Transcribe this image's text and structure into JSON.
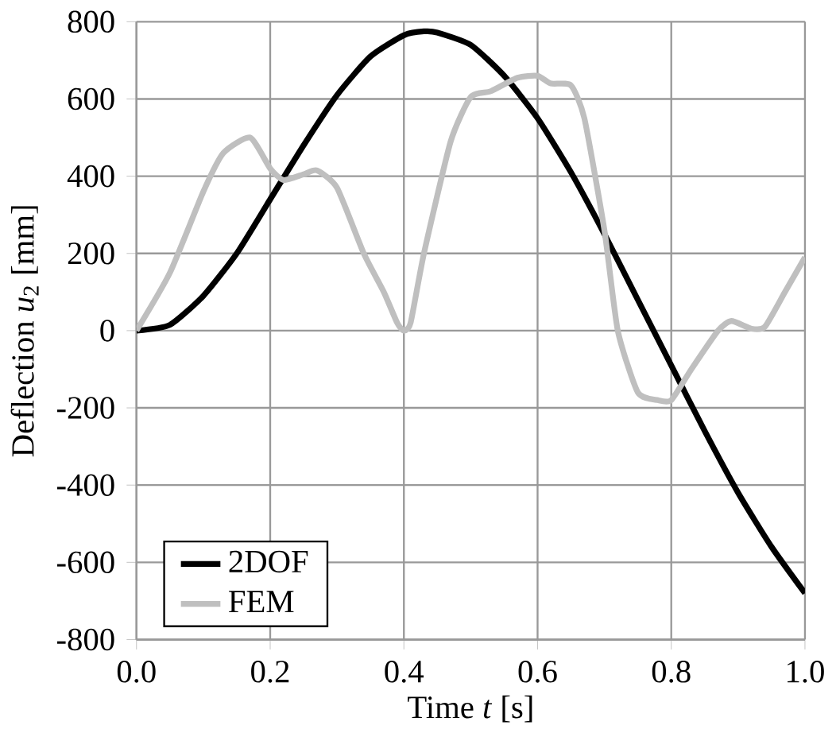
{
  "chart_data": {
    "type": "line",
    "xlabel": "Time *t* [s]",
    "ylabel": "Deflection *u*$_{2}$ [mm]",
    "xlim": [
      0,
      1
    ],
    "ylim": [
      -800,
      800
    ],
    "xticks": [
      {
        "value": 0,
        "label": "0.0"
      },
      {
        "value": 0.2,
        "label": "0.2"
      },
      {
        "value": 0.4,
        "label": "0.4"
      },
      {
        "value": 0.6,
        "label": "0.6"
      },
      {
        "value": 0.8,
        "label": "0.8"
      },
      {
        "value": 1,
        "label": "1.0"
      }
    ],
    "yticks": [
      -800,
      -600,
      -400,
      -200,
      0,
      200,
      400,
      600,
      800
    ],
    "grid": true,
    "legend": "bottom left",
    "marker": "none",
    "line_style": "solid",
    "series": [
      {
        "name": "2DOF",
        "color": "#000000",
        "x": [
          0,
          0.05,
          0.1,
          0.15,
          0.2,
          0.25,
          0.3,
          0.35,
          0.4,
          0.43,
          0.45,
          0.5,
          0.55,
          0.6,
          0.65,
          0.7,
          0.75,
          0.8,
          0.85,
          0.9,
          0.95,
          1.0
        ],
        "values": [
          0,
          15,
          90,
          200,
          340,
          480,
          610,
          710,
          765,
          775,
          772,
          740,
          660,
          550,
          410,
          250,
          80,
          -90,
          -260,
          -420,
          -560,
          -680
        ]
      },
      {
        "name": "FEM",
        "color": "#bfbfbf",
        "x": [
          0,
          0.05,
          0.1,
          0.13,
          0.17,
          0.2,
          0.22,
          0.25,
          0.27,
          0.3,
          0.34,
          0.37,
          0.39,
          0.4,
          0.41,
          0.43,
          0.47,
          0.5,
          0.53,
          0.57,
          0.6,
          0.62,
          0.65,
          0.67,
          0.7,
          0.72,
          0.75,
          0.78,
          0.8,
          0.83,
          0.87,
          0.89,
          0.92,
          0.94,
          0.97,
          1.0
        ],
        "values": [
          0,
          150,
          360,
          460,
          500,
          420,
          390,
          405,
          415,
          370,
          200,
          100,
          20,
          0,
          20,
          200,
          490,
          605,
          620,
          655,
          660,
          640,
          635,
          550,
          260,
          0,
          -160,
          -180,
          -180,
          -100,
          0,
          25,
          5,
          10,
          100,
          190
        ]
      }
    ]
  }
}
